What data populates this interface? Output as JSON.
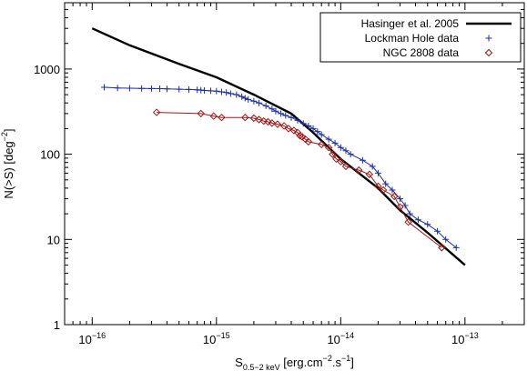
{
  "chart_data": {
    "type": "line",
    "title": "",
    "xlabel": {
      "main": "S",
      "subscript": "0.5−2 keV",
      "units_prefix": "[erg.cm",
      "units_exp1": "−2",
      "units_mid": ".s",
      "units_exp2": "−1",
      "units_suffix": "]"
    },
    "ylabel": {
      "main": "N(>S)  [deg",
      "exp": "−2",
      "suffix": "]"
    },
    "x_scale": "log",
    "y_scale": "log",
    "xlim": [
      6e-17,
      3e-13
    ],
    "ylim": [
      1,
      6000
    ],
    "x_ticks": [
      {
        "value": 1e-16,
        "base": "10",
        "exp": "−16"
      },
      {
        "value": 1e-15,
        "base": "10",
        "exp": "−15"
      },
      {
        "value": 1e-14,
        "base": "10",
        "exp": "−14"
      },
      {
        "value": 1e-13,
        "base": "10",
        "exp": "−13"
      }
    ],
    "y_ticks": [
      {
        "value": 1,
        "label": "1"
      },
      {
        "value": 10,
        "label": "10"
      },
      {
        "value": 100,
        "label": "100"
      },
      {
        "value": 1000,
        "label": "1000"
      }
    ],
    "legend_position": "top-right",
    "series": [
      {
        "name": "Hasinger et al. 2005",
        "style": "line",
        "color": "#000000",
        "points": [
          [
            1e-16,
            3000
          ],
          [
            2e-16,
            1900
          ],
          [
            5e-16,
            1150
          ],
          [
            1e-15,
            800
          ],
          [
            2e-15,
            500
          ],
          [
            4e-15,
            300
          ],
          [
            6e-15,
            180
          ],
          [
            8e-15,
            120
          ],
          [
            1e-14,
            88
          ],
          [
            2e-14,
            40
          ],
          [
            3e-14,
            22
          ],
          [
            5e-14,
            12
          ],
          [
            1e-13,
            5
          ]
        ]
      },
      {
        "name": "Lockman Hole data",
        "style": "line-plus",
        "color": "#1a2fa0",
        "points": [
          [
            1.25e-16,
            610
          ],
          [
            1.6e-16,
            600
          ],
          [
            2e-16,
            595
          ],
          [
            2.5e-16,
            592
          ],
          [
            3e-16,
            590
          ],
          [
            3.5e-16,
            588
          ],
          [
            4e-16,
            585
          ],
          [
            5e-16,
            580
          ],
          [
            6e-16,
            575
          ],
          [
            7e-16,
            570
          ],
          [
            7.5e-16,
            565
          ],
          [
            8e-16,
            560
          ],
          [
            9e-16,
            555
          ],
          [
            1e-15,
            550
          ],
          [
            1.1e-15,
            540
          ],
          [
            1.2e-15,
            530
          ],
          [
            1.3e-15,
            515
          ],
          [
            1.45e-15,
            500
          ],
          [
            1.6e-15,
            475
          ],
          [
            1.7e-15,
            455
          ],
          [
            1.8e-15,
            440
          ],
          [
            2e-15,
            420
          ],
          [
            2.2e-15,
            400
          ],
          [
            2.5e-15,
            370
          ],
          [
            2.8e-15,
            340
          ],
          [
            3e-15,
            320
          ],
          [
            3.3e-15,
            300
          ],
          [
            3.6e-15,
            285
          ],
          [
            4e-15,
            270
          ],
          [
            4.5e-15,
            250
          ],
          [
            5e-15,
            230
          ],
          [
            5.5e-15,
            215
          ],
          [
            6e-15,
            200
          ],
          [
            6.5e-15,
            185
          ],
          [
            7e-15,
            170
          ],
          [
            8e-15,
            150
          ],
          [
            9e-15,
            135
          ],
          [
            1e-14,
            120
          ],
          [
            1.1e-14,
            110
          ],
          [
            1.2e-14,
            100
          ],
          [
            1.5e-14,
            85
          ],
          [
            1.8e-14,
            72
          ],
          [
            2e-14,
            60
          ],
          [
            2.3e-14,
            45
          ],
          [
            2.6e-14,
            38
          ],
          [
            3e-14,
            30
          ],
          [
            3.3e-14,
            25
          ],
          [
            3.6e-14,
            20
          ],
          [
            4.2e-14,
            17
          ],
          [
            5e-14,
            15
          ],
          [
            6e-14,
            12.5
          ],
          [
            7e-14,
            10
          ],
          [
            8.5e-14,
            8
          ]
        ]
      },
      {
        "name": "NGC 2808 data",
        "style": "line-diamond",
        "color": "#a01818",
        "points": [
          [
            3.3e-16,
            310
          ],
          [
            7.5e-16,
            300
          ],
          [
            9.5e-16,
            280
          ],
          [
            1.1e-15,
            270
          ],
          [
            1.7e-15,
            270
          ],
          [
            2e-15,
            265
          ],
          [
            2.2e-15,
            255
          ],
          [
            2.4e-15,
            245
          ],
          [
            2.6e-15,
            240
          ],
          [
            2.8e-15,
            232
          ],
          [
            3.1e-15,
            225
          ],
          [
            3.5e-15,
            215
          ],
          [
            3.8e-15,
            200
          ],
          [
            4.2e-15,
            190
          ],
          [
            4.5e-15,
            180
          ],
          [
            4.7e-15,
            165
          ],
          [
            4.9e-15,
            160
          ],
          [
            5.2e-15,
            150
          ],
          [
            5.5e-15,
            140
          ],
          [
            7e-15,
            130
          ],
          [
            8e-15,
            120
          ],
          [
            8.6e-15,
            100
          ],
          [
            9.2e-15,
            88
          ],
          [
            1e-14,
            82
          ],
          [
            1.1e-14,
            72
          ],
          [
            1.4e-14,
            65
          ],
          [
            1.7e-14,
            58
          ],
          [
            2e-14,
            42
          ],
          [
            2.2e-14,
            38
          ],
          [
            2.7e-14,
            32
          ],
          [
            3e-14,
            24
          ],
          [
            3.5e-14,
            16
          ],
          [
            6.5e-14,
            8
          ]
        ]
      }
    ]
  }
}
